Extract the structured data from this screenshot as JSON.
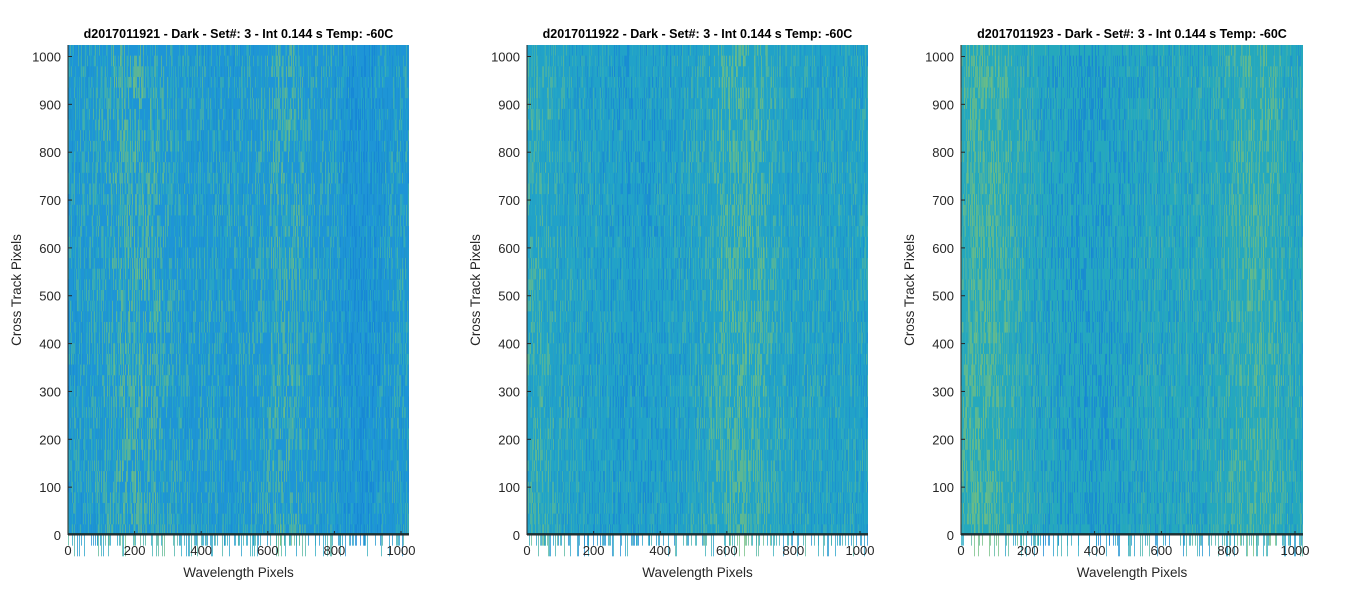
{
  "chart_data": [
    {
      "type": "heatmap",
      "title": "d2017011921 - Dark - Set#: 3 - Int 0.144 s Temp: -60C",
      "xlabel": "Wavelength Pixels",
      "ylabel": "Cross Track Pixels",
      "xlim": [
        0,
        1024
      ],
      "ylim": [
        0,
        1024
      ],
      "xticks": [
        0,
        200,
        400,
        600,
        800,
        1000
      ],
      "yticks": [
        0,
        100,
        200,
        300,
        400,
        500,
        600,
        700,
        800,
        900,
        1000
      ],
      "colormap": "parula",
      "grid": false,
      "description_colors": {
        "dominant": "#1e95d6",
        "highlight": "#5fb98f"
      }
    },
    {
      "type": "heatmap",
      "title": "d2017011922 - Dark - Set#: 3 - Int 0.144 s Temp: -60C",
      "xlabel": "Wavelength Pixels",
      "ylabel": "Cross Track Pixels",
      "xlim": [
        0,
        1024
      ],
      "ylim": [
        0,
        1024
      ],
      "xticks": [
        0,
        200,
        400,
        600,
        800,
        1000
      ],
      "yticks": [
        0,
        100,
        200,
        300,
        400,
        500,
        600,
        700,
        800,
        900,
        1000
      ],
      "colormap": "parula",
      "grid": false,
      "description_colors": {
        "dominant": "#21a2c8",
        "highlight": "#74bf7e"
      }
    },
    {
      "type": "heatmap",
      "title": "d2017011923 - Dark - Set#: 3 - Int 0.144 s Temp: -60C",
      "xlabel": "Wavelength Pixels",
      "ylabel": "Cross Track Pixels",
      "xlim": [
        0,
        1024
      ],
      "ylim": [
        0,
        1024
      ],
      "xticks": [
        0,
        200,
        400,
        600,
        800,
        1000
      ],
      "yticks": [
        0,
        100,
        200,
        300,
        400,
        500,
        600,
        700,
        800,
        900,
        1000
      ],
      "colormap": "parula",
      "grid": false,
      "description_colors": {
        "dominant": "#25a8bd",
        "highlight": "#6cbf86"
      }
    }
  ]
}
